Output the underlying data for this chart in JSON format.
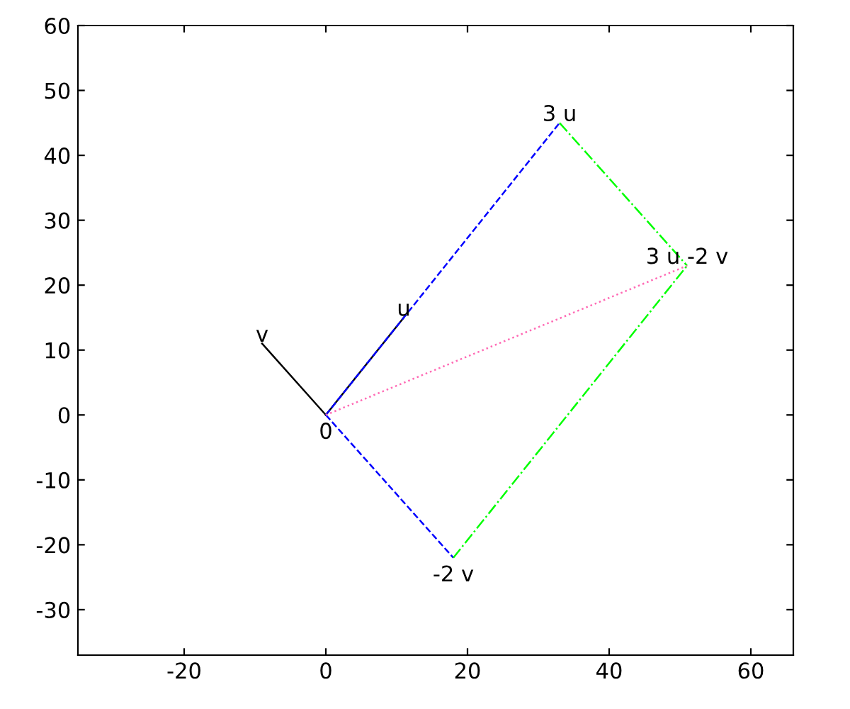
{
  "chart_data": {
    "type": "line",
    "series": [
      {
        "color": "#000000",
        "line_style": "solid",
        "x": [
          0,
          11
        ],
        "values": [
          0,
          15
        ]
      },
      {
        "color": "#000000",
        "line_style": "solid",
        "x": [
          0,
          -9
        ],
        "values": [
          0,
          11
        ]
      },
      {
        "color": "#0000ff",
        "line_style": "dashed",
        "x": [
          0,
          33
        ],
        "values": [
          0,
          45
        ]
      },
      {
        "color": "#0000ff",
        "line_style": "dashed",
        "x": [
          0,
          18
        ],
        "values": [
          0,
          -22
        ]
      },
      {
        "color": "#00ff00",
        "line_style": "dashdot",
        "x": [
          33,
          51
        ],
        "values": [
          45,
          23
        ]
      },
      {
        "color": "#00ff00",
        "line_style": "dashdot",
        "x": [
          18,
          51
        ],
        "values": [
          -22,
          23
        ]
      },
      {
        "color": "#ff69b4",
        "line_style": "dotted",
        "x": [
          0,
          51
        ],
        "values": [
          0,
          23
        ]
      }
    ],
    "annotations": [
      {
        "text": "0",
        "x": 0,
        "y": 0
      },
      {
        "text": "u",
        "x": 11,
        "y": 15
      },
      {
        "text": "v",
        "x": -9,
        "y": 11
      },
      {
        "text": "3 u",
        "x": 33,
        "y": 45
      },
      {
        "text": "-2 v",
        "x": 18,
        "y": -22
      },
      {
        "text": "3 u -2 v",
        "x": 51,
        "y": 23
      }
    ],
    "xlim": [
      -35,
      66
    ],
    "ylim": [
      -37,
      60
    ],
    "xticks": [
      -20,
      0,
      20,
      40,
      60
    ],
    "yticks": [
      -30,
      -20,
      -10,
      0,
      10,
      20,
      30,
      40,
      50,
      60
    ],
    "grid": false,
    "legend": false
  }
}
